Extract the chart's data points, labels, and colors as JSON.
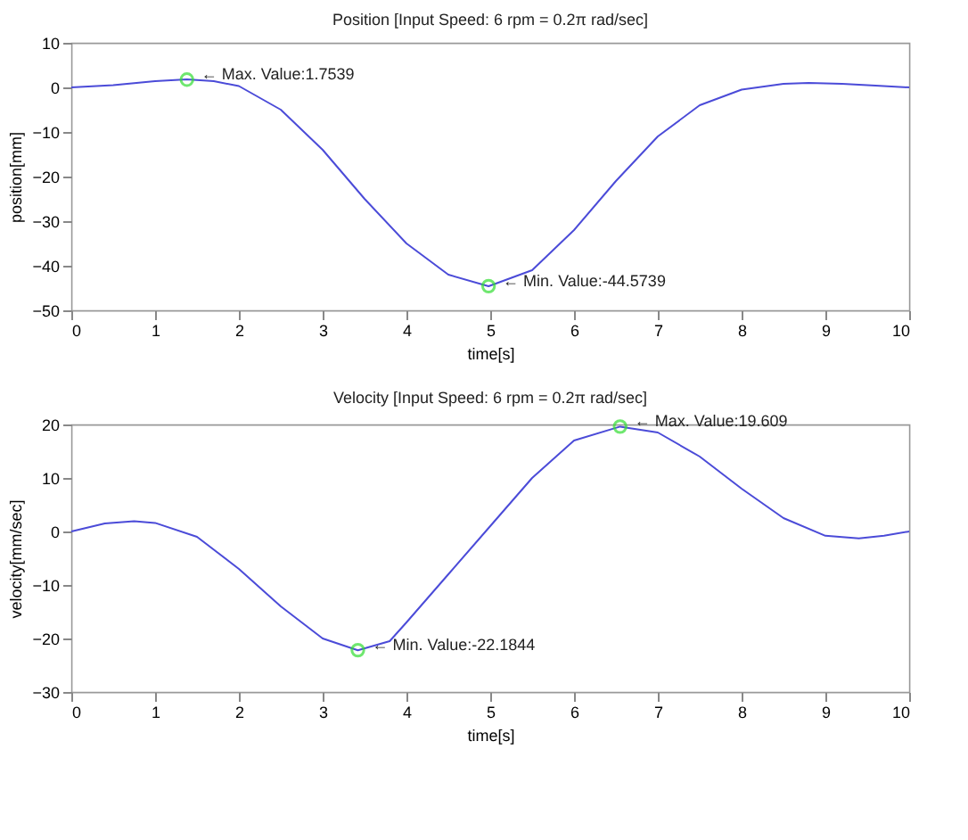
{
  "chart_data": [
    {
      "type": "line",
      "title": "Position [Input Speed: 6 rpm = 0.2π rad/sec]",
      "xlabel": "time[s]",
      "ylabel": "position[mm]",
      "xlim": [
        0,
        10
      ],
      "xticks": [
        0,
        1,
        2,
        3,
        4,
        5,
        6,
        7,
        8,
        9,
        10
      ],
      "ylim": [
        -50,
        10
      ],
      "yticks": [
        -50,
        -40,
        -30,
        -20,
        -10,
        0,
        10
      ],
      "grid": false,
      "series": [
        {
          "color": "#4b4bd8",
          "marker": "none",
          "x": [
            0,
            0.5,
            1,
            1.38,
            1.7,
            2,
            2.5,
            3,
            3.5,
            4,
            4.5,
            4.98,
            5.5,
            6,
            6.5,
            7,
            7.5,
            8,
            8.5,
            8.8,
            9.2,
            9.6,
            10
          ],
          "values": [
            0,
            0.5,
            1.4,
            1.8,
            1.4,
            0.3,
            -5,
            -14,
            -25,
            -35,
            -42,
            -44.6,
            -41,
            -32,
            -21,
            -11,
            -4,
            -0.5,
            0.8,
            1,
            0.8,
            0.4,
            0
          ]
        },
        {
          "type": "scatter",
          "color": "#33dd33",
          "marker": "circle",
          "x": [
            1.38,
            4.98
          ],
          "values": [
            1.7539,
            -44.5739
          ]
        }
      ],
      "annotations": [
        {
          "text": "← Max. Value:1.7539",
          "x": 1.38,
          "y": 1.7539
        },
        {
          "text": "← Min. Value:-44.5739",
          "x": 4.98,
          "y": -44.5739
        }
      ]
    },
    {
      "type": "line",
      "title": "Velocity [Input Speed: 6 rpm = 0.2π rad/sec]",
      "xlabel": "time[s]",
      "ylabel": "velocity[mm/sec]",
      "xlim": [
        0,
        10
      ],
      "xticks": [
        0,
        1,
        2,
        3,
        4,
        5,
        6,
        7,
        8,
        9,
        10
      ],
      "ylim": [
        -30,
        20
      ],
      "yticks": [
        -30,
        -20,
        -10,
        0,
        10,
        20
      ],
      "grid": false,
      "series": [
        {
          "color": "#4b4bd8",
          "marker": "none",
          "x": [
            0,
            0.4,
            0.75,
            1,
            1.5,
            2,
            2.5,
            3,
            3.42,
            3.8,
            4,
            4.5,
            5,
            5.5,
            6,
            6.55,
            7,
            7.5,
            8,
            8.5,
            9,
            9.4,
            9.7,
            10
          ],
          "values": [
            0,
            1.5,
            1.9,
            1.6,
            -1,
            -7,
            -14,
            -20,
            -22.2,
            -20.5,
            -17,
            -8,
            1,
            10,
            17,
            19.6,
            18.5,
            14,
            8,
            2.5,
            -0.8,
            -1.3,
            -0.8,
            0
          ]
        },
        {
          "type": "scatter",
          "color": "#33dd33",
          "marker": "circle",
          "x": [
            3.42,
            6.55
          ],
          "values": [
            -22.1844,
            19.609
          ]
        }
      ],
      "annotations": [
        {
          "text": "← Min. Value:-22.1844",
          "x": 3.42,
          "y": -22.1844
        },
        {
          "text": "← Max. Value:19.609",
          "x": 6.55,
          "y": 19.609
        }
      ]
    }
  ]
}
